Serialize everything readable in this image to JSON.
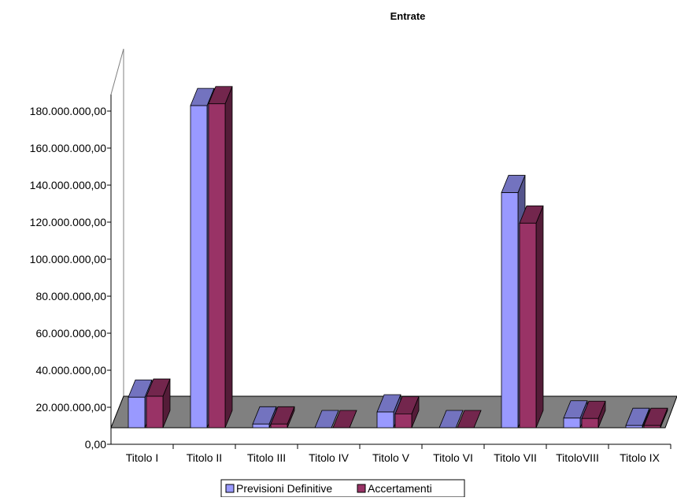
{
  "chart_data": {
    "type": "bar",
    "title": "Entrate",
    "xlabel": "",
    "ylabel": "",
    "categories": [
      "Titolo I",
      "Titolo II",
      "Titolo III",
      "Titolo IV",
      "Titolo V",
      "Titolo VI",
      "Titolo VII",
      "TitoloVIII",
      "Titolo IX"
    ],
    "series": [
      {
        "name": "Previsioni Definitive",
        "color": "#9999ff",
        "values": [
          16500000,
          174000000,
          2000000,
          0,
          8500000,
          0,
          127000000,
          5200000,
          1200000
        ]
      },
      {
        "name": "Accertamenti",
        "color": "#993366",
        "values": [
          17000000,
          175000000,
          2000000,
          0,
          7500000,
          0,
          110500000,
          5000000,
          1200000
        ]
      }
    ],
    "ylim": [
      0,
      180000000
    ],
    "yticks": [
      "0,00",
      "20.000.000,00",
      "40.000.000,00",
      "60.000.000,00",
      "80.000.000,00",
      "100.000.000,00",
      "120.000.000,00",
      "140.000.000,00",
      "160.000.000,00",
      "180.000.000,00"
    ],
    "grid": false,
    "legend_position": "bottom",
    "projection": "3d-clustered"
  }
}
